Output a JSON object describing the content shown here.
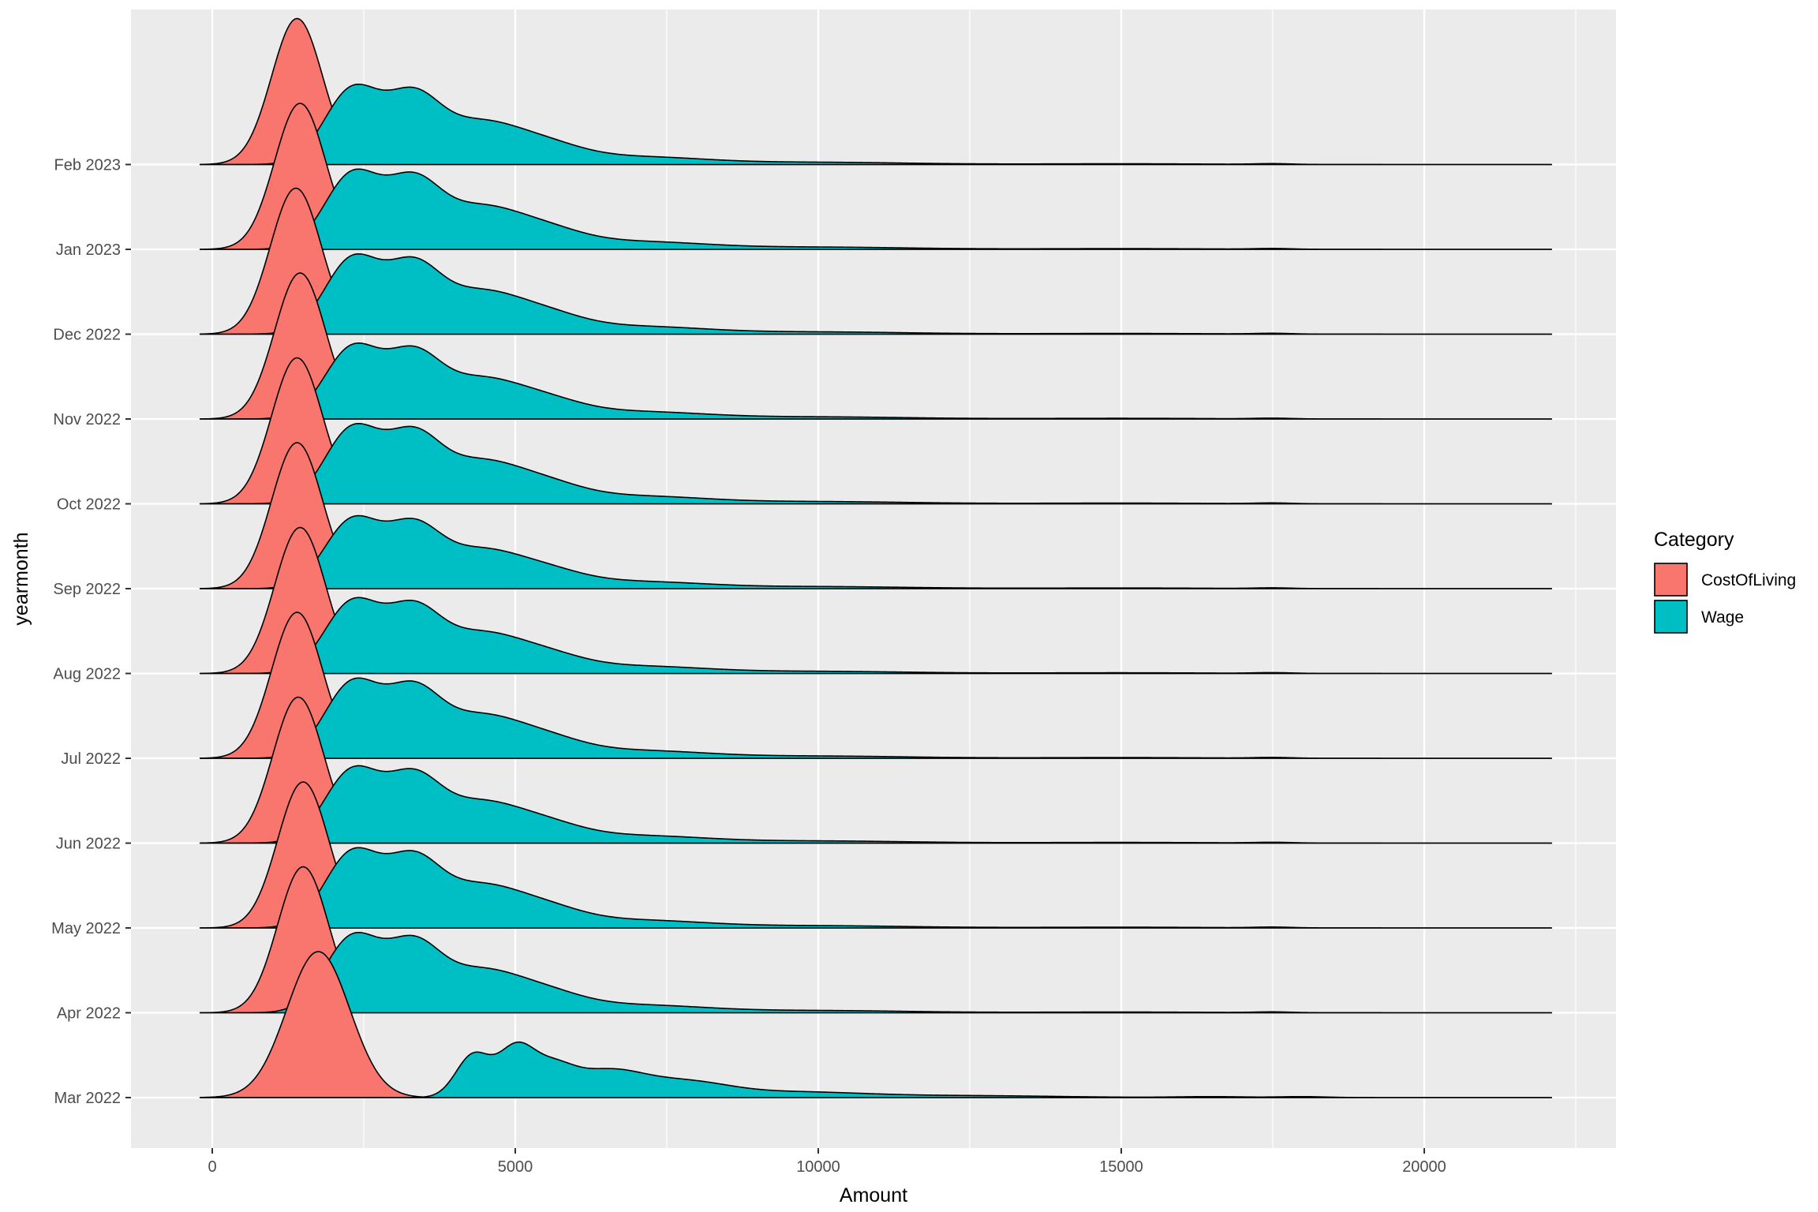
{
  "chart_data": {
    "type": "ridgeline",
    "xlabel": "Amount",
    "ylabel": "yearmonth",
    "xlim": [
      -1300,
      23300
    ],
    "x_ticks": [
      0,
      5000,
      10000,
      15000,
      20000
    ],
    "x_tick_labels": [
      "0",
      "5000",
      "10000",
      "15000",
      "20000"
    ],
    "x_density_range": [
      -200,
      22100
    ],
    "grid": true,
    "background": "#ebebeb",
    "legend": {
      "title": "Category",
      "placement": "right",
      "entries": [
        {
          "name": "CostOfLiving",
          "color": "#F8766D"
        },
        {
          "name": "Wage",
          "color": "#00BFC4"
        }
      ]
    },
    "months": [
      "Mar 2022",
      "Apr 2022",
      "May 2022",
      "Jun 2022",
      "Jul 2022",
      "Aug 2022",
      "Sep 2022",
      "Oct 2022",
      "Nov 2022",
      "Dec 2022",
      "Jan 2023",
      "Feb 2023"
    ],
    "series": [
      {
        "name": "CostOfLiving",
        "color": "#F8766D",
        "peaks": [
          {
            "month": "Mar 2022",
            "mode": 1750,
            "sd": 520
          },
          {
            "month": "Apr 2022",
            "mode": 1500,
            "sd": 420
          },
          {
            "month": "May 2022",
            "mode": 1500,
            "sd": 420
          },
          {
            "month": "Jun 2022",
            "mode": 1420,
            "sd": 420
          },
          {
            "month": "Jul 2022",
            "mode": 1400,
            "sd": 420
          },
          {
            "month": "Aug 2022",
            "mode": 1450,
            "sd": 420
          },
          {
            "month": "Sep 2022",
            "mode": 1400,
            "sd": 420
          },
          {
            "month": "Oct 2022",
            "mode": 1400,
            "sd": 420
          },
          {
            "month": "Nov 2022",
            "mode": 1450,
            "sd": 420
          },
          {
            "month": "Dec 2022",
            "mode": 1380,
            "sd": 420
          },
          {
            "month": "Jan 2023",
            "mode": 1450,
            "sd": 420
          },
          {
            "month": "Feb 2023",
            "mode": 1400,
            "sd": 420
          }
        ]
      },
      {
        "name": "Wage",
        "color": "#00BFC4",
        "mode_rows": [
          {
            "month": "Mar 2022",
            "peak_height_ratio": 0.38,
            "components": [
              [
                4300,
                280,
                0.9
              ],
              [
                5000,
                300,
                1.0
              ],
              [
                5600,
                350,
                0.55
              ],
              [
                6500,
                600,
                0.55
              ],
              [
                7800,
                700,
                0.3
              ],
              [
                9500,
                1200,
                0.12
              ],
              [
                12500,
                1500,
                0.04
              ],
              [
                16500,
                600,
                0.02
              ],
              [
                18000,
                400,
                0.02
              ]
            ]
          },
          {
            "month": "Apr 2022",
            "peak_height_ratio": 0.55
          },
          {
            "month": "May 2022",
            "peak_height_ratio": 0.55
          },
          {
            "month": "Jun 2022",
            "peak_height_ratio": 0.53
          },
          {
            "month": "Jul 2022",
            "peak_height_ratio": 0.55
          },
          {
            "month": "Aug 2022",
            "peak_height_ratio": 0.52
          },
          {
            "month": "Sep 2022",
            "peak_height_ratio": 0.5
          },
          {
            "month": "Oct 2022",
            "peak_height_ratio": 0.55
          },
          {
            "month": "Nov 2022",
            "peak_height_ratio": 0.52
          },
          {
            "month": "Dec 2022",
            "peak_height_ratio": 0.55
          },
          {
            "month": "Jan 2023",
            "peak_height_ratio": 0.55
          },
          {
            "month": "Feb 2023",
            "peak_height_ratio": 0.55
          }
        ],
        "typical_components": [
          [
            2300,
            450,
            1.0
          ],
          [
            3300,
            450,
            0.85
          ],
          [
            4300,
            600,
            0.45
          ],
          [
            5300,
            700,
            0.3
          ],
          [
            7000,
            1100,
            0.1
          ],
          [
            10000,
            1500,
            0.03
          ],
          [
            15000,
            1500,
            0.01
          ],
          [
            17500,
            300,
            0.01
          ]
        ]
      }
    ]
  }
}
